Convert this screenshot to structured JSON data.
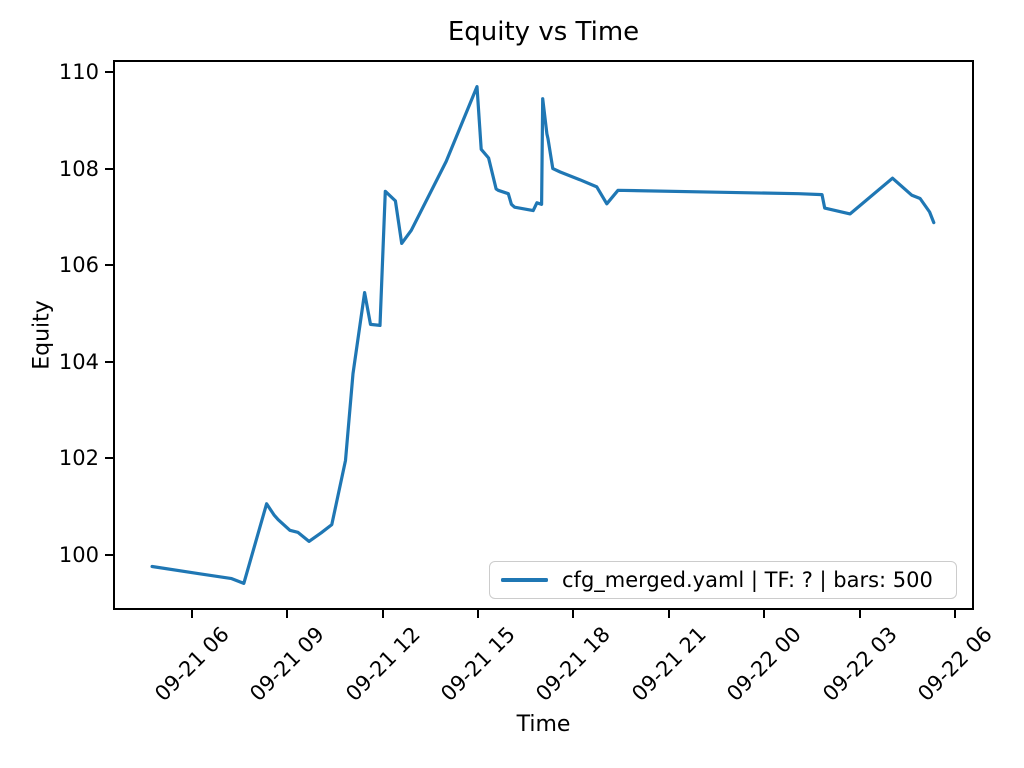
{
  "title": "Equity vs Time",
  "axes": {
    "xlabel": "Time",
    "ylabel": "Equity"
  },
  "legend": {
    "label": "cfg_merged.yaml | TF: ? | bars: 500",
    "line_color": "#1f77b4"
  },
  "chart_data": {
    "type": "line",
    "title": "Equity vs Time",
    "xlabel": "Time",
    "ylabel": "Equity",
    "grid": false,
    "legend_position": "lower right",
    "background": "#ffffff",
    "x_ticks": [
      "09-21 06",
      "09-21 09",
      "09-21 12",
      "09-21 15",
      "09-21 18",
      "09-21 21",
      "09-22 00",
      "09-22 03",
      "09-22 06"
    ],
    "y_ticks": [
      100,
      102,
      104,
      106,
      108,
      110
    ],
    "xlim": [
      "09-21 03:35",
      "09-22 06:32"
    ],
    "ylim": [
      98.89,
      110.21
    ],
    "series": [
      {
        "name": "cfg_merged.yaml | TF: ? | bars: 500",
        "color": "#1f77b4",
        "points": [
          [
            "09-21 04:45",
            99.75
          ],
          [
            "09-21 06:15",
            99.6
          ],
          [
            "09-21 07:15",
            99.5
          ],
          [
            "09-21 07:38",
            99.4
          ],
          [
            "09-21 08:21",
            101.05
          ],
          [
            "09-21 08:35",
            100.82
          ],
          [
            "09-21 08:43",
            100.72
          ],
          [
            "09-21 09:05",
            100.5
          ],
          [
            "09-21 09:20",
            100.46
          ],
          [
            "09-21 09:41",
            100.27
          ],
          [
            "09-21 10:04",
            100.45
          ],
          [
            "09-21 10:24",
            100.62
          ],
          [
            "09-21 10:50",
            101.95
          ],
          [
            "09-21 11:04",
            103.75
          ],
          [
            "09-21 11:26",
            105.43
          ],
          [
            "09-21 11:37",
            104.77
          ],
          [
            "09-21 11:55",
            104.75
          ],
          [
            "09-21 12:05",
            107.53
          ],
          [
            "09-21 12:24",
            107.33
          ],
          [
            "09-21 12:36",
            106.45
          ],
          [
            "09-21 12:54",
            106.72
          ],
          [
            "09-21 14:00",
            108.15
          ],
          [
            "09-21 14:58",
            109.7
          ],
          [
            "09-21 15:06",
            108.4
          ],
          [
            "09-21 15:20",
            108.22
          ],
          [
            "09-21 15:34",
            107.58
          ],
          [
            "09-21 15:38",
            107.55
          ],
          [
            "09-21 15:57",
            107.48
          ],
          [
            "09-21 16:03",
            107.26
          ],
          [
            "09-21 16:09",
            107.2
          ],
          [
            "09-21 16:44",
            107.13
          ],
          [
            "09-21 16:51",
            107.29
          ],
          [
            "09-21 17:00",
            107.26
          ],
          [
            "09-21 17:02",
            109.45
          ],
          [
            "09-21 17:10",
            108.72
          ],
          [
            "09-21 17:12",
            108.62
          ],
          [
            "09-21 17:21",
            108.0
          ],
          [
            "09-21 17:35",
            107.93
          ],
          [
            "09-21 18:12",
            107.77
          ],
          [
            "09-21 18:44",
            107.62
          ],
          [
            "09-21 19:03",
            107.27
          ],
          [
            "09-21 19:24",
            107.55
          ],
          [
            "09-21 22:30",
            107.51
          ],
          [
            "09-22 01:05",
            107.48
          ],
          [
            "09-22 01:49",
            107.46
          ],
          [
            "09-22 01:54",
            107.18
          ],
          [
            "09-22 02:42",
            107.06
          ],
          [
            "09-22 04:02",
            107.8
          ],
          [
            "09-22 04:38",
            107.45
          ],
          [
            "09-22 04:54",
            107.38
          ],
          [
            "09-22 05:12",
            107.1
          ],
          [
            "09-22 05:20",
            106.88
          ]
        ]
      }
    ]
  }
}
